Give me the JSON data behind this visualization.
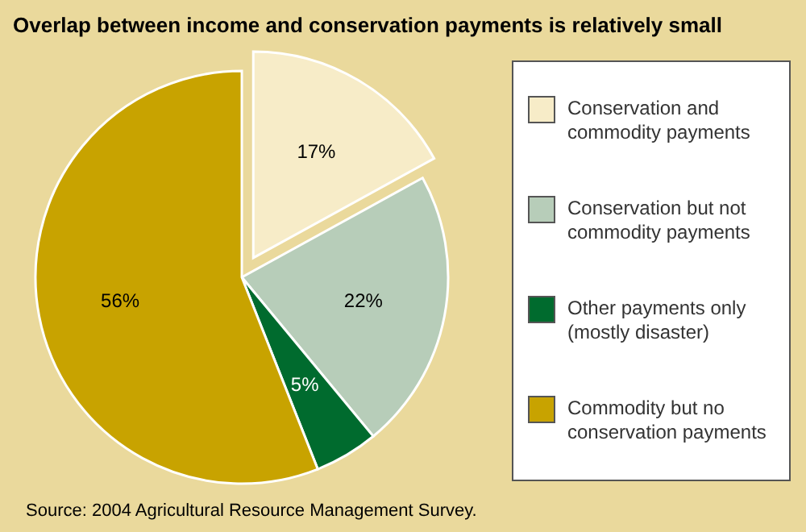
{
  "chart_data": {
    "type": "pie",
    "title": "Overlap between income and conservation payments is relatively small",
    "categories": [
      "Conservation and commodity payments",
      "Conservation but not commodity payments",
      "Other payments only (mostly disaster)",
      "Commodity but no conservation payments"
    ],
    "values": [
      17,
      22,
      5,
      56
    ],
    "value_labels": [
      "17%",
      "22%",
      "5%",
      "56%"
    ],
    "colors": [
      "#f7ecc8",
      "#b7cdb9",
      "#006b2e",
      "#c8a300"
    ],
    "legend": "right",
    "annotations": [
      "Source:  2004 Agricultural Resource Management Survey."
    ]
  }
}
